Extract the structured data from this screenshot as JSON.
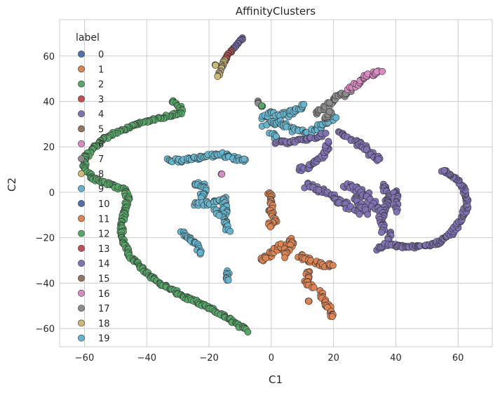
{
  "chart_data": {
    "type": "scatter",
    "title": "AffinityClusters",
    "xlabel": "C1",
    "ylabel": "C2",
    "xlim": [
      -68,
      71
    ],
    "ylim": [
      -68,
      76
    ],
    "xticks": [
      -60,
      -40,
      -20,
      0,
      20,
      40,
      60
    ],
    "yticks": [
      -60,
      -40,
      -20,
      0,
      20,
      40,
      60
    ],
    "xtick_labels": [
      "−60",
      "−40",
      "−20",
      "0",
      "20",
      "40",
      "60"
    ],
    "ytick_labels": [
      "−60",
      "−40",
      "−20",
      "0",
      "20",
      "40",
      "60"
    ],
    "grid": true,
    "legend": {
      "title": "label",
      "placement": "upper-left",
      "entries": [
        "0",
        "1",
        "2",
        "3",
        "4",
        "5",
        "6",
        "7",
        "8",
        "9",
        "10",
        "11",
        "12",
        "13",
        "14",
        "15",
        "16",
        "17",
        "18",
        "19"
      ],
      "colors": [
        "#4c72b0",
        "#dd8452",
        "#55a868",
        "#c44e52",
        "#8172b3",
        "#937860",
        "#da8bc3",
        "#8c8c8c",
        "#ccb974",
        "#64b5cd",
        "#4c72b0",
        "#dd8452",
        "#55a868",
        "#c44e52",
        "#8172b3",
        "#937860",
        "#da8bc3",
        "#8c8c8c",
        "#ccb974",
        "#64b5cd"
      ]
    },
    "clusters": [
      {
        "label": 2,
        "color": "#55a868",
        "path": [
          [
            -32,
            40
          ],
          [
            -29,
            37
          ],
          [
            -29,
            35
          ],
          [
            -35,
            33
          ],
          [
            -45,
            29
          ],
          [
            -52,
            25
          ],
          [
            -57,
            20
          ],
          [
            -60,
            15
          ],
          [
            -60,
            10
          ],
          [
            -57,
            6
          ],
          [
            -51,
            3
          ],
          [
            -47,
            1
          ],
          [
            -46,
            -3
          ],
          [
            -47,
            -8
          ],
          [
            -48,
            -15
          ],
          [
            -48,
            -20
          ],
          [
            -46,
            -27
          ],
          [
            -42,
            -33
          ],
          [
            -36,
            -40
          ],
          [
            -28,
            -46
          ],
          [
            -20,
            -51
          ],
          [
            -12,
            -57
          ],
          [
            -8,
            -61
          ]
        ],
        "spread": 0.6
      },
      {
        "label": 14,
        "color": "#8172b3",
        "path": [
          [
            -9,
            68
          ],
          [
            -11,
            65
          ],
          [
            -13,
            62
          ]
        ],
        "spread": 0.3
      },
      {
        "label": 13,
        "color": "#c44e52",
        "path": [
          [
            -13,
            62
          ],
          [
            -14,
            60
          ],
          [
            -15,
            58
          ]
        ],
        "spread": 0.3
      },
      {
        "label": 18,
        "color": "#ccb974",
        "path": [
          [
            -15,
            58
          ],
          [
            -16,
            55
          ],
          [
            -17,
            51
          ]
        ],
        "spread": 0.3
      },
      {
        "label": 18,
        "color": "#ccb974",
        "path": [
          [
            -18,
            56
          ],
          [
            -18,
            56
          ]
        ],
        "spread": 0.2
      },
      {
        "label": 17,
        "color": "#8c8c8c",
        "path": [
          [
            -4,
            40
          ],
          [
            -4,
            39
          ]
        ],
        "spread": 0.3
      },
      {
        "label": 12,
        "color": "#55a868",
        "path": [
          [
            -3,
            38
          ],
          [
            -3,
            38
          ]
        ],
        "spread": 0.2
      },
      {
        "label": 9,
        "color": "#64b5cd",
        "path": [
          [
            -3,
            33
          ],
          [
            0,
            35
          ],
          [
            5,
            34
          ],
          [
            9,
            37
          ],
          [
            11,
            38
          ]
        ],
        "spread": 1.0
      },
      {
        "label": 9,
        "color": "#64b5cd",
        "path": [
          [
            -2,
            30
          ],
          [
            2,
            31
          ],
          [
            6,
            28
          ],
          [
            12,
            26
          ],
          [
            17,
            30
          ],
          [
            20,
            33
          ]
        ],
        "spread": 1.0
      },
      {
        "label": 9,
        "color": "#64b5cd",
        "path": [
          [
            0,
            26
          ],
          [
            2,
            24
          ]
        ],
        "spread": 0.8
      },
      {
        "label": 9,
        "color": "#64b5cd",
        "path": [
          [
            -33,
            14
          ],
          [
            -29,
            14
          ],
          [
            -25,
            15
          ],
          [
            -20,
            16
          ],
          [
            -16,
            17
          ],
          [
            -12,
            15
          ],
          [
            -8,
            14
          ]
        ],
        "spread": 0.8
      },
      {
        "label": 9,
        "color": "#64b5cd",
        "path": [
          [
            -25,
            4
          ],
          [
            -22,
            3
          ],
          [
            -21,
            1
          ],
          [
            -23,
            -2
          ]
        ],
        "spread": 0.8
      },
      {
        "label": 9,
        "color": "#64b5cd",
        "path": [
          [
            -24,
            -5
          ],
          [
            -21,
            -5
          ],
          [
            -18,
            -4
          ],
          [
            -15,
            -3
          ],
          [
            -15,
            -10
          ],
          [
            -14,
            -17
          ]
        ],
        "spread": 0.8
      },
      {
        "label": 9,
        "color": "#64b5cd",
        "path": [
          [
            -18,
            -7
          ],
          [
            -17,
            -10
          ]
        ],
        "spread": 0.6
      },
      {
        "label": 9,
        "color": "#64b5cd",
        "path": [
          [
            -29,
            -17
          ],
          [
            -27,
            -20
          ],
          [
            -24,
            -23
          ],
          [
            -23,
            -27
          ]
        ],
        "spread": 0.7
      },
      {
        "label": 9,
        "color": "#64b5cd",
        "path": [
          [
            -14,
            -35
          ],
          [
            -14,
            -39
          ]
        ],
        "spread": 0.5
      },
      {
        "label": 16,
        "color": "#da8bc3",
        "path": [
          [
            -16,
            8
          ],
          [
            -16,
            8
          ]
        ],
        "spread": 0.1
      },
      {
        "label": 1,
        "color": "#dd8452",
        "path": [
          [
            -1,
            0
          ],
          [
            0,
            -4
          ],
          [
            0,
            -8
          ],
          [
            1,
            -12
          ],
          [
            -1,
            -15
          ]
        ],
        "spread": 0.8
      },
      {
        "label": 1,
        "color": "#dd8452",
        "path": [
          [
            -3,
            -30
          ],
          [
            0,
            -27
          ],
          [
            3,
            -24
          ],
          [
            7,
            -21
          ],
          [
            4,
            -28
          ]
        ],
        "spread": 1.0
      },
      {
        "label": 1,
        "color": "#dd8452",
        "path": [
          [
            9,
            -28
          ],
          [
            12,
            -30
          ],
          [
            17,
            -32
          ],
          [
            20,
            -32
          ]
        ],
        "spread": 0.8
      },
      {
        "label": 1,
        "color": "#dd8452",
        "path": [
          [
            12,
            -35
          ],
          [
            11,
            -39
          ],
          [
            13,
            -42
          ]
        ],
        "spread": 0.8
      },
      {
        "label": 1,
        "color": "#dd8452",
        "path": [
          [
            16,
            -44
          ],
          [
            17,
            -48
          ],
          [
            19,
            -52
          ],
          [
            20,
            -55
          ]
        ],
        "spread": 0.8
      },
      {
        "label": 1,
        "color": "#dd8452",
        "path": [
          [
            12,
            -48
          ],
          [
            12,
            -48
          ]
        ],
        "spread": 0.2
      },
      {
        "label": 17,
        "color": "#8c8c8c",
        "path": [
          [
            15,
            35
          ],
          [
            18,
            38
          ],
          [
            21,
            42
          ],
          [
            25,
            44
          ]
        ],
        "spread": 1.0
      },
      {
        "label": 17,
        "color": "#8c8c8c",
        "path": [
          [
            17,
            32
          ],
          [
            19,
            35
          ]
        ],
        "spread": 0.7
      },
      {
        "label": 6,
        "color": "#da8bc3",
        "path": [
          [
            25,
            45
          ],
          [
            28,
            48
          ],
          [
            30,
            51
          ],
          [
            35,
            53
          ]
        ],
        "spread": 0.8
      },
      {
        "label": 4,
        "color": "#8172b3",
        "path": [
          [
            2,
            22
          ],
          [
            6,
            22
          ],
          [
            10,
            23
          ],
          [
            14,
            24
          ],
          [
            17,
            26
          ]
        ],
        "spread": 0.8
      },
      {
        "label": 4,
        "color": "#8172b3",
        "path": [
          [
            22,
            27
          ],
          [
            24,
            24
          ]
        ],
        "spread": 0.5
      },
      {
        "label": 4,
        "color": "#8172b3",
        "path": [
          [
            9,
            10
          ],
          [
            13,
            12
          ],
          [
            16,
            15
          ],
          [
            18,
            18
          ],
          [
            18,
            22
          ]
        ],
        "spread": 0.8
      },
      {
        "label": 4,
        "color": "#8172b3",
        "path": [
          [
            26,
            23
          ],
          [
            30,
            20
          ],
          [
            32,
            17
          ],
          [
            35,
            14
          ]
        ],
        "spread": 0.8
      },
      {
        "label": 4,
        "color": "#8172b3",
        "path": [
          [
            11,
            3
          ],
          [
            15,
            1
          ],
          [
            19,
            -1
          ],
          [
            22,
            -4
          ],
          [
            25,
            -6
          ],
          [
            28,
            -8
          ],
          [
            30,
            -9
          ]
        ],
        "spread": 1.2
      },
      {
        "label": 4,
        "color": "#8172b3",
        "path": [
          [
            23,
            3
          ],
          [
            27,
            2
          ],
          [
            30,
            -1
          ],
          [
            32,
            -4
          ],
          [
            34,
            -8
          ]
        ],
        "spread": 1.2
      },
      {
        "label": 4,
        "color": "#8172b3",
        "path": [
          [
            27,
            -3
          ],
          [
            29,
            -6
          ],
          [
            31,
            -9
          ]
        ],
        "spread": 1.0
      },
      {
        "label": 4,
        "color": "#8172b3",
        "path": [
          [
            36,
            3
          ],
          [
            37,
            0
          ],
          [
            37,
            -4
          ],
          [
            36,
            -8
          ],
          [
            35,
            -12
          ],
          [
            36,
            -17
          ]
        ],
        "spread": 0.8
      },
      {
        "label": 4,
        "color": "#8172b3",
        "path": [
          [
            40,
            1
          ],
          [
            40,
            -3
          ],
          [
            40,
            -8
          ]
        ],
        "spread": 0.8
      },
      {
        "label": 4,
        "color": "#8172b3",
        "path": [
          [
            38,
            -18
          ],
          [
            38,
            -21
          ]
        ],
        "spread": 0.6
      },
      {
        "label": 4,
        "color": "#8172b3",
        "path": [
          [
            34,
            -25
          ],
          [
            37,
            -23
          ],
          [
            42,
            -24
          ],
          [
            48,
            -24
          ],
          [
            54,
            -22
          ],
          [
            58,
            -18
          ],
          [
            61,
            -12
          ],
          [
            63,
            -5
          ],
          [
            62,
            1
          ],
          [
            60,
            5
          ],
          [
            57,
            8
          ],
          [
            55,
            10
          ]
        ],
        "spread": 0.6
      }
    ]
  }
}
